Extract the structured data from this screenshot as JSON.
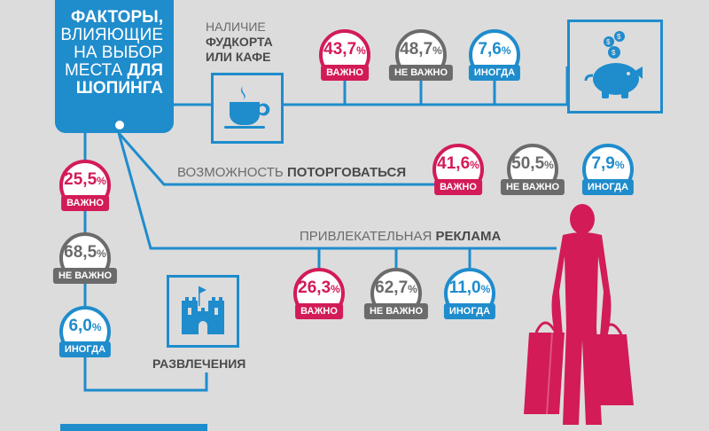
{
  "title": {
    "line1": "ФАКТОРЫ,",
    "line2": "ВЛИЯЮЩИЕ",
    "line3": "НА ВЫБОР",
    "line4_a": "МЕСТА ",
    "line4_b": "ДЛЯ",
    "line5": "ШОПИНГА"
  },
  "colors": {
    "important": "#d21b57",
    "not_important": "#6b6b6b",
    "sometimes": "#1f8ccc"
  },
  "food": {
    "label_a": "НАЛИЧИЕ",
    "label_b": "ФУДКОРТА",
    "label_c": "ИЛИ КАФЕ",
    "icon": "coffee-cup-icon",
    "important": {
      "value": "43,7",
      "unit": "%",
      "tag": "ВАЖНО"
    },
    "not_important": {
      "value": "48,7",
      "unit": "%",
      "tag": "НЕ ВАЖНО"
    },
    "sometimes": {
      "value": "7,6",
      "unit": "%",
      "tag": "ИНОГДА"
    }
  },
  "bargain": {
    "label_a": "ВОЗМОЖНОСТЬ ",
    "label_b": "ПОТОРГОВАТЬСЯ",
    "icon": "piggy-bank-icon",
    "important": {
      "value": "41,6",
      "unit": "%",
      "tag": "ВАЖНО"
    },
    "not_important": {
      "value": "50,5",
      "unit": "%",
      "tag": "НЕ ВАЖНО"
    },
    "sometimes": {
      "value": "7,9",
      "unit": "%",
      "tag": "ИНОГДА"
    }
  },
  "ads": {
    "label_a": "ПРИВЛЕКАТЕЛЬНАЯ ",
    "label_b": "РЕКЛАМА",
    "important": {
      "value": "26,3",
      "unit": "%",
      "tag": "ВАЖНО"
    },
    "not_important": {
      "value": "62,7",
      "unit": "%",
      "tag": "НЕ ВАЖНО"
    },
    "sometimes": {
      "value": "11,0",
      "unit": "%",
      "tag": "ИНОГДА"
    }
  },
  "fun": {
    "label": "РАЗВЛЕЧЕНИЯ",
    "icon": "castle-icon",
    "important": {
      "value": "25,5",
      "unit": "%",
      "tag": "ВАЖНО"
    },
    "not_important": {
      "value": "68,5",
      "unit": "%",
      "tag": "НЕ ВАЖНО"
    },
    "sometimes": {
      "value": "6,0",
      "unit": "%",
      "tag": "ИНОГДА"
    }
  },
  "shopper_icon": "shopper-with-bags-icon"
}
